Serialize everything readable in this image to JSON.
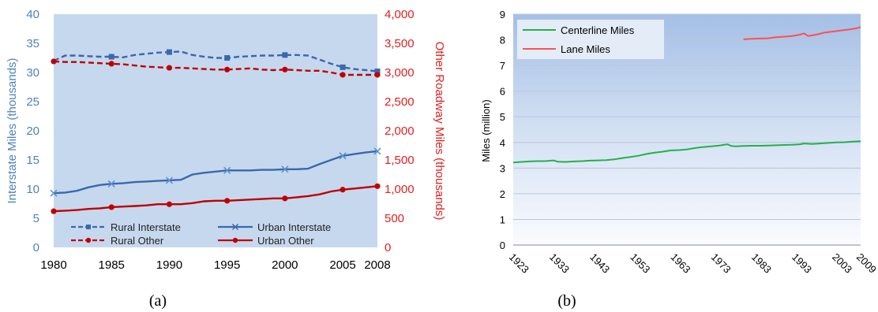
{
  "chart_data": [
    {
      "type": "line",
      "caption": "(a)",
      "colors": {
        "left_axis": "#4f81bd",
        "right_axis": "#e02020",
        "rural_interstate": "#3a68ad",
        "urban_interstate": "#3a68ad",
        "rural_other": "#c00000",
        "urban_other": "#c00000"
      },
      "xlabel": "",
      "ylabel_left": "Interstate Miles (thousands)",
      "ylabel_right": "Other Roadway Miles (thousands)",
      "xlim": [
        1980,
        2008
      ],
      "ylim_left": [
        0,
        40
      ],
      "ylim_right": [
        0,
        4000
      ],
      "x_ticks": [
        "1980",
        "1985",
        "1990",
        "1995",
        "2000",
        "2005",
        "2008"
      ],
      "y_left_ticks": [
        "0",
        "5",
        "10",
        "15",
        "20",
        "25",
        "30",
        "35",
        "40"
      ],
      "y_right_ticks": [
        "0",
        "500",
        "1,000",
        "1,500",
        "2,000",
        "2,500",
        "3,000",
        "3,500",
        "4,000"
      ],
      "legend_position": "bottom-center",
      "grid": false,
      "series": [
        {
          "name": "Rural Interstate",
          "axis": "left",
          "style": "dashed",
          "marker": "square",
          "x": [
            1980,
            1981,
            1982,
            1983,
            1984,
            1985,
            1986,
            1987,
            1988,
            1989,
            1990,
            1991,
            1992,
            1993,
            1994,
            1995,
            1996,
            1997,
            1998,
            1999,
            2000,
            2001,
            2002,
            2003,
            2004,
            2005,
            2006,
            2007,
            2008
          ],
          "y": [
            32.0,
            32.9,
            32.9,
            32.8,
            32.7,
            32.7,
            32.6,
            33.0,
            33.2,
            33.4,
            33.5,
            33.6,
            33.0,
            32.7,
            32.5,
            32.5,
            32.7,
            32.8,
            32.9,
            32.9,
            33.0,
            33.0,
            32.9,
            32.2,
            31.5,
            30.9,
            30.6,
            30.4,
            30.2
          ],
          "marker_x": [
            1985,
            1990,
            1995,
            2000,
            2005,
            2008
          ]
        },
        {
          "name": "Urban Interstate",
          "axis": "left",
          "style": "solid",
          "marker": "x",
          "x": [
            1980,
            1981,
            1982,
            1983,
            1984,
            1985,
            1986,
            1987,
            1988,
            1989,
            1990,
            1991,
            1992,
            1993,
            1994,
            1995,
            1996,
            1997,
            1998,
            1999,
            2000,
            2001,
            2002,
            2003,
            2004,
            2005,
            2006,
            2007,
            2008
          ],
          "y": [
            9.3,
            9.4,
            9.7,
            10.3,
            10.7,
            10.9,
            11.0,
            11.2,
            11.3,
            11.4,
            11.5,
            11.6,
            12.5,
            12.8,
            13.0,
            13.2,
            13.2,
            13.2,
            13.3,
            13.3,
            13.4,
            13.4,
            13.5,
            14.3,
            15.0,
            15.7,
            16.0,
            16.3,
            16.5
          ],
          "marker_x": [
            1980,
            1985,
            1990,
            1995,
            2000,
            2005,
            2008
          ]
        },
        {
          "name": "Rural Other",
          "axis": "right",
          "style": "dashed",
          "marker": "circle",
          "x": [
            1980,
            1981,
            1982,
            1983,
            1984,
            1985,
            1986,
            1987,
            1988,
            1989,
            1990,
            1991,
            1992,
            1993,
            1994,
            1995,
            1996,
            1997,
            1998,
            1999,
            2000,
            2001,
            2002,
            2003,
            2004,
            2005,
            2006,
            2007,
            2008
          ],
          "y": [
            3190,
            3180,
            3180,
            3170,
            3160,
            3150,
            3140,
            3120,
            3100,
            3090,
            3080,
            3080,
            3070,
            3060,
            3050,
            3050,
            3060,
            3070,
            3050,
            3040,
            3050,
            3040,
            3030,
            3030,
            3000,
            2960,
            2960,
            2960,
            2960
          ],
          "marker_x": [
            1980,
            1985,
            1990,
            1995,
            2000,
            2005,
            2008
          ]
        },
        {
          "name": "Urban Other",
          "axis": "right",
          "style": "solid",
          "marker": "circle",
          "x": [
            1980,
            1981,
            1982,
            1983,
            1984,
            1985,
            1986,
            1987,
            1988,
            1989,
            1990,
            1991,
            1992,
            1993,
            1994,
            1995,
            1996,
            1997,
            1998,
            1999,
            2000,
            2001,
            2002,
            2003,
            2004,
            2005,
            2006,
            2007,
            2008
          ],
          "y": [
            620,
            630,
            640,
            660,
            670,
            690,
            700,
            710,
            720,
            740,
            740,
            740,
            760,
            790,
            800,
            800,
            810,
            820,
            830,
            840,
            840,
            860,
            880,
            910,
            960,
            990,
            1010,
            1030,
            1050
          ],
          "marker_x": [
            1980,
            1985,
            1990,
            1995,
            2000,
            2005,
            2008
          ]
        }
      ]
    },
    {
      "type": "line",
      "caption": "(b)",
      "ylabel": "Miles (million)",
      "xlabel": "",
      "xlim": [
        1923,
        2009
      ],
      "ylim": [
        0,
        9
      ],
      "x_ticks": [
        "1923",
        "1933",
        "1943",
        "1953",
        "1963",
        "1973",
        "1983",
        "1993",
        "2003",
        "2009"
      ],
      "y_ticks": [
        "0",
        "1",
        "2",
        "3",
        "4",
        "5",
        "6",
        "7",
        "8",
        "9"
      ],
      "legend_position": "top-left",
      "grid": true,
      "series": [
        {
          "name": "Centerline Miles",
          "color": "#22b14c",
          "x": [
            1923,
            1925,
            1927,
            1929,
            1931,
            1933,
            1934,
            1936,
            1938,
            1940,
            1942,
            1944,
            1946,
            1948,
            1950,
            1952,
            1954,
            1956,
            1958,
            1960,
            1962,
            1964,
            1966,
            1968,
            1970,
            1972,
            1974,
            1976,
            1977,
            1978,
            1980,
            1982,
            1984,
            1986,
            1988,
            1990,
            1992,
            1994,
            1995,
            1997,
            1999,
            2001,
            2003,
            2005,
            2007,
            2009
          ],
          "y": [
            3.22,
            3.24,
            3.26,
            3.27,
            3.27,
            3.3,
            3.25,
            3.24,
            3.26,
            3.27,
            3.29,
            3.3,
            3.31,
            3.34,
            3.39,
            3.43,
            3.48,
            3.55,
            3.6,
            3.64,
            3.69,
            3.7,
            3.73,
            3.78,
            3.82,
            3.85,
            3.88,
            3.93,
            3.86,
            3.85,
            3.86,
            3.87,
            3.87,
            3.88,
            3.89,
            3.9,
            3.91,
            3.93,
            3.96,
            3.94,
            3.96,
            3.98,
            4.0,
            4.01,
            4.03,
            4.05
          ]
        },
        {
          "name": "Lane Miles",
          "color": "#ff5050",
          "x": [
            1980,
            1982,
            1984,
            1986,
            1988,
            1990,
            1992,
            1994,
            1995,
            1996,
            1998,
            2000,
            2002,
            2004,
            2006,
            2008,
            2009
          ],
          "y": [
            8.02,
            8.04,
            8.05,
            8.06,
            8.1,
            8.12,
            8.15,
            8.2,
            8.25,
            8.15,
            8.2,
            8.28,
            8.32,
            8.36,
            8.4,
            8.45,
            8.5
          ]
        }
      ]
    }
  ]
}
